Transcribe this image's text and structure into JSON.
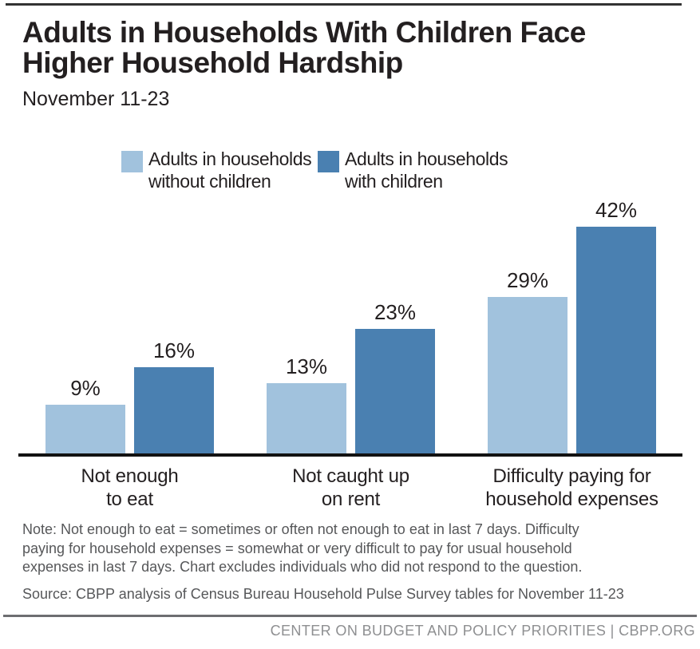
{
  "title": "Adults in Households With Children Face\nHigher Household Hardship",
  "subtitle": "November 11-23",
  "legend": [
    {
      "label": "Adults in households\nwithout children",
      "color": "#a1c2dd"
    },
    {
      "label": "Adults in households\nwith children",
      "color": "#4a80b1"
    }
  ],
  "chart_data": {
    "type": "bar",
    "categories": [
      "Not enough\nto eat",
      "Not caught up\non rent",
      "Difficulty paying for\nhousehold expenses"
    ],
    "series": [
      {
        "name": "Adults in households without children",
        "color": "#a1c2dd",
        "values": [
          9,
          13,
          29
        ]
      },
      {
        "name": "Adults in households with children",
        "color": "#4a80b1",
        "values": [
          16,
          23,
          42
        ]
      }
    ],
    "value_suffix": "%",
    "ylim": [
      0,
      42
    ],
    "title": "Adults in Households With Children Face Higher Household Hardship",
    "xlabel": "",
    "ylabel": "",
    "grid": false,
    "legend_position": "top"
  },
  "note": "Note: Not enough to eat = sometimes or often not enough to eat in last 7 days. Difficulty\npaying for household expenses = somewhat or very difficult to pay for usual household\nexpenses in last 7 days. Chart excludes individuals who did not respond to the question.",
  "source": "Source: CBPP analysis of Census Bureau Household Pulse Survey tables for November 11-23",
  "footer": "CENTER ON BUDGET AND POLICY PRIORITIES | CBPP.ORG"
}
